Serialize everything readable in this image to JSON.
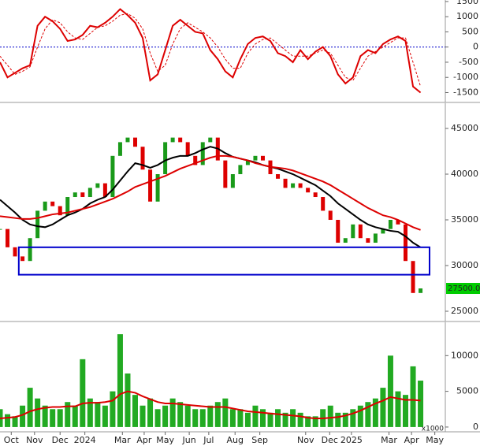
{
  "chart_data": [
    {
      "type": "line",
      "x": [
        0,
        1,
        2,
        3,
        4,
        5,
        6,
        7,
        8,
        9,
        10,
        11,
        12,
        13,
        14,
        15,
        16,
        17,
        18,
        19,
        20,
        21,
        22,
        23,
        24,
        25,
        26,
        27,
        28,
        29,
        30,
        31,
        32,
        33,
        34,
        35,
        36,
        37,
        38,
        39,
        40,
        41,
        42,
        43,
        44,
        45,
        46,
        47,
        48,
        49,
        50,
        51,
        52,
        53,
        54,
        55,
        56
      ],
      "xlim": [
        0,
        59.3
      ],
      "ylim": [
        -1825,
        1550
      ],
      "yticks": [
        -1500,
        -1000,
        -500,
        0,
        500,
        1000,
        1500
      ],
      "zero_line": {
        "value": 0,
        "color": "#0000cc"
      },
      "series": [
        {
          "color": "#dd0000",
          "dash": false,
          "values": [
            -500,
            -1000,
            -850,
            -700,
            -600,
            700,
            1000,
            850,
            600,
            200,
            250,
            400,
            700,
            650,
            800,
            1000,
            1250,
            1050,
            800,
            300,
            -1100,
            -900,
            -100,
            700,
            900,
            700,
            500,
            450,
            -100,
            -400,
            -800,
            -1000,
            -400,
            100,
            300,
            350,
            200,
            -200,
            -300,
            -500,
            -100,
            -400,
            -150,
            0,
            -300,
            -900,
            -1200,
            -1000,
            -300,
            -100,
            -200,
            100,
            250,
            350,
            200,
            -1300,
            -1500
          ]
        },
        {
          "color": "#dd0000",
          "dash": true,
          "values": [
            -300,
            -600,
            -900,
            -800,
            -650,
            0,
            600,
            900,
            800,
            500,
            300,
            250,
            450,
            650,
            700,
            850,
            1050,
            1100,
            950,
            600,
            -200,
            -800,
            -600,
            100,
            600,
            800,
            650,
            500,
            300,
            0,
            -400,
            -700,
            -700,
            -200,
            100,
            250,
            300,
            100,
            -100,
            -300,
            -300,
            -300,
            -200,
            -100,
            -200,
            -600,
            -1000,
            -1100,
            -700,
            -300,
            -150,
            0,
            150,
            300,
            300,
            -500,
            -1300
          ]
        }
      ]
    },
    {
      "type": "candlestick",
      "x": [
        0,
        1,
        2,
        3,
        4,
        5,
        6,
        7,
        8,
        9,
        10,
        11,
        12,
        13,
        14,
        15,
        16,
        17,
        18,
        19,
        20,
        21,
        22,
        23,
        24,
        25,
        26,
        27,
        28,
        29,
        30,
        31,
        32,
        33,
        34,
        35,
        36,
        37,
        38,
        39,
        40,
        41,
        42,
        43,
        44,
        45,
        46,
        47,
        48,
        49,
        50,
        51,
        52,
        53,
        54,
        55,
        56
      ],
      "xlim": [
        0,
        59.3
      ],
      "ylim": [
        23880,
        47760
      ],
      "yticks": [
        25000,
        30000,
        35000,
        40000,
        45000
      ],
      "last_value_label": "27500.00",
      "last_label_color": "#00cc00",
      "zone": {
        "x": [
          2.5,
          57.2
        ],
        "y": [
          29000,
          32000
        ],
        "color": "#0000cc"
      },
      "series": [
        {
          "kind": "candle",
          "up_color": "#1a9a1a",
          "down_color": "#dd0000",
          "values": [
            34000,
            32000,
            31000,
            30500,
            33000,
            36000,
            37000,
            36500,
            35500,
            37500,
            38000,
            37500,
            38500,
            39000,
            37500,
            42000,
            43500,
            44000,
            43000,
            40500,
            37000,
            40000,
            43500,
            44000,
            43500,
            42000,
            41000,
            43500,
            44000,
            41500,
            38500,
            40000,
            41000,
            41500,
            42000,
            41500,
            40000,
            39500,
            38500,
            39000,
            38500,
            38000,
            37500,
            36000,
            35000,
            32500,
            33000,
            34500,
            33000,
            32500,
            33500,
            34000,
            35000,
            34500,
            30500,
            27000,
            27500
          ]
        },
        {
          "kind": "line",
          "color": "#000000",
          "values": [
            37200,
            36500,
            35800,
            35000,
            34500,
            34300,
            34200,
            34500,
            35000,
            35500,
            35800,
            36200,
            36800,
            37200,
            37500,
            38300,
            39300,
            40300,
            41200,
            41000,
            40700,
            41000,
            41500,
            41800,
            42000,
            42000,
            42300,
            42700,
            43000,
            42800,
            42300,
            41900,
            41700,
            41500,
            41300,
            41000,
            40800,
            40600,
            40300,
            40000,
            39600,
            39200,
            38800,
            38200,
            37600,
            36800,
            36200,
            35600,
            35000,
            34500,
            34200,
            34000,
            33800,
            33700,
            33200,
            32500,
            32000
          ]
        },
        {
          "kind": "line",
          "color": "#dd0000",
          "values": [
            35400,
            35300,
            35200,
            35100,
            35100,
            35200,
            35400,
            35600,
            35700,
            35800,
            36000,
            36200,
            36400,
            36700,
            37000,
            37300,
            37700,
            38100,
            38600,
            38900,
            39200,
            39500,
            39800,
            40200,
            40600,
            40900,
            41200,
            41500,
            41800,
            42000,
            42000,
            41900,
            41700,
            41500,
            41200,
            41000,
            40800,
            40700,
            40600,
            40400,
            40100,
            39800,
            39500,
            39200,
            38800,
            38300,
            37800,
            37300,
            36800,
            36300,
            35900,
            35500,
            35300,
            35000,
            34600,
            34200,
            33900
          ]
        }
      ]
    },
    {
      "type": "bar",
      "x": [
        0,
        1,
        2,
        3,
        4,
        5,
        6,
        7,
        8,
        9,
        10,
        11,
        12,
        13,
        14,
        15,
        16,
        17,
        18,
        19,
        20,
        21,
        22,
        23,
        24,
        25,
        26,
        27,
        28,
        29,
        30,
        31,
        32,
        33,
        34,
        35,
        36,
        37,
        38,
        39,
        40,
        41,
        42,
        43,
        44,
        45,
        46,
        47,
        48,
        49,
        50,
        51,
        52,
        53,
        54,
        55,
        56
      ],
      "xlim": [
        0,
        59.3
      ],
      "ylim": [
        -670,
        14670
      ],
      "yticks": [
        0,
        5000,
        10000
      ],
      "unit_label": "x1000",
      "xticks": [
        {
          "value": 1.5,
          "label": "Oct"
        },
        {
          "value": 4.6,
          "label": "Nov"
        },
        {
          "value": 8,
          "label": "Dec"
        },
        {
          "value": 11.3,
          "label": "2024"
        },
        {
          "value": 16.3,
          "label": "Mar"
        },
        {
          "value": 19.2,
          "label": "Apr"
        },
        {
          "value": 22,
          "label": "May"
        },
        {
          "value": 25.2,
          "label": "Jun"
        },
        {
          "value": 27.8,
          "label": "Jul"
        },
        {
          "value": 31.3,
          "label": "Aug"
        },
        {
          "value": 34.6,
          "label": "Sep"
        },
        {
          "value": 40.7,
          "label": "Nov"
        },
        {
          "value": 43.9,
          "label": "Dec"
        },
        {
          "value": 46.8,
          "label": "2025"
        },
        {
          "value": 51.8,
          "label": "Mar"
        },
        {
          "value": 54.8,
          "label": "Apr"
        },
        {
          "value": 57.9,
          "label": "May"
        }
      ],
      "series": [
        {
          "kind": "bar",
          "color": "#22aa22",
          "values": [
            2500,
            1800,
            1500,
            3000,
            5500,
            4000,
            3000,
            2500,
            2500,
            3500,
            3000,
            9500,
            4000,
            3500,
            3000,
            5000,
            13000,
            7500,
            4500,
            3000,
            4000,
            2500,
            3000,
            4000,
            3500,
            3000,
            2500,
            2500,
            3000,
            3500,
            4000,
            2500,
            2500,
            2000,
            3000,
            2500,
            2000,
            2500,
            2000,
            2500,
            2000,
            1500,
            1500,
            2500,
            3000,
            2000,
            2000,
            2500,
            3000,
            3500,
            4000,
            5500,
            10000,
            5000,
            4500,
            8500,
            6500
          ]
        },
        {
          "kind": "line",
          "color": "#dd0000",
          "values": [
            1200,
            1300,
            1400,
            1700,
            2200,
            2500,
            2700,
            2800,
            2800,
            2900,
            2900,
            3300,
            3400,
            3400,
            3500,
            3700,
            4600,
            5000,
            4800,
            4300,
            3900,
            3500,
            3300,
            3300,
            3200,
            3100,
            3000,
            2900,
            2800,
            2800,
            2800,
            2600,
            2400,
            2200,
            2100,
            2000,
            1900,
            1800,
            1700,
            1600,
            1500,
            1300,
            1200,
            1200,
            1300,
            1400,
            1600,
            1900,
            2300,
            2800,
            3300,
            3700,
            4200,
            4000,
            3800,
            3800,
            3700
          ]
        }
      ]
    }
  ]
}
